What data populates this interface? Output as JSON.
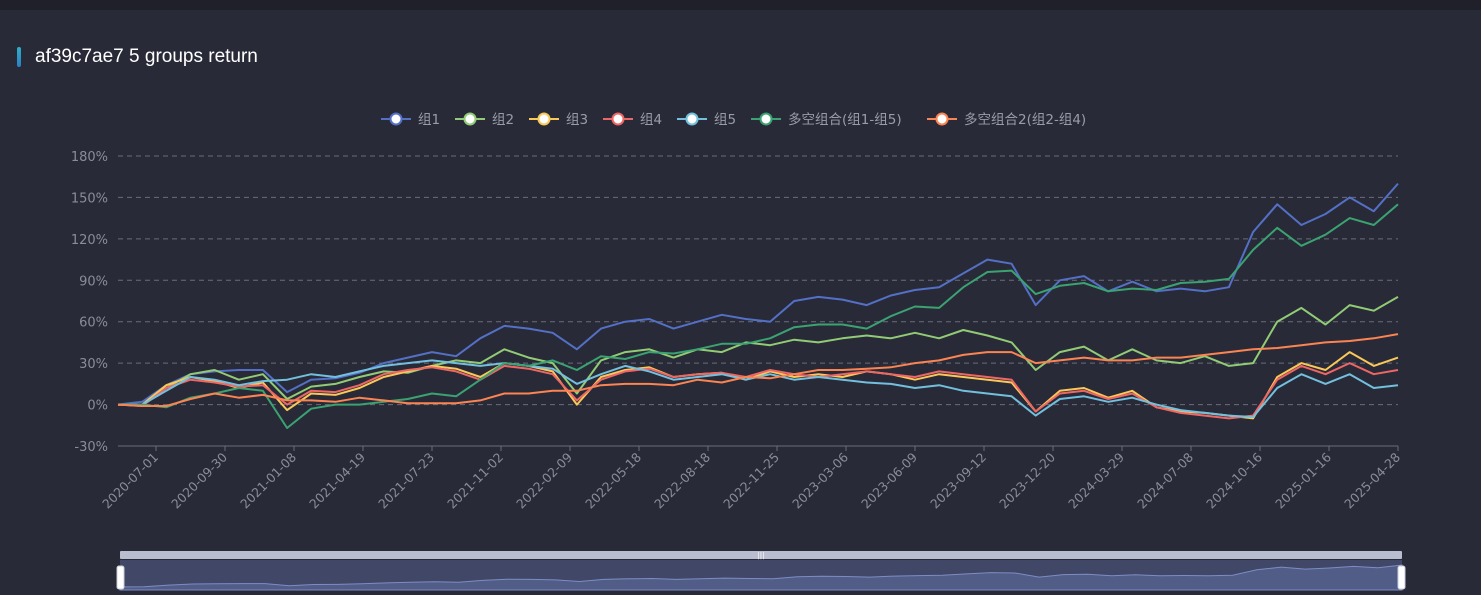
{
  "colors": {
    "background": "#282a37",
    "grid": "#6a6d7a",
    "axis_text": "#8a8d99",
    "legend_text": "#9a9da8"
  },
  "chart_data": {
    "type": "line",
    "title": "af39c7ae7 5 groups return",
    "ylim": [
      -30,
      180
    ],
    "y_ticks": [
      "180%",
      "150%",
      "120%",
      "90%",
      "60%",
      "30%",
      "0%",
      "-30%"
    ],
    "y_tick_values": [
      180,
      150,
      120,
      90,
      60,
      30,
      0,
      -30
    ],
    "x_tick_labels": [
      "2020-07-01",
      "2020-09-30",
      "2021-01-08",
      "2021-04-19",
      "2021-07-23",
      "2021-11-02",
      "2022-02-09",
      "2022-05-18",
      "2022-08-18",
      "2022-11-25",
      "2023-03-06",
      "2023-06-09",
      "2023-09-12",
      "2023-12-20",
      "2024-03-29",
      "2024-07-08",
      "2024-10-16",
      "2025-01-16",
      "2025-04-28"
    ],
    "grid": true,
    "legend_position": "top-center",
    "series": [
      {
        "name": "组1",
        "color": "#5470c6",
        "values": [
          0,
          2,
          14,
          22,
          24,
          25,
          25,
          9,
          18,
          19,
          23,
          30,
          34,
          38,
          35,
          48,
          57,
          55,
          52,
          40,
          55,
          60,
          62,
          55,
          60,
          65,
          62,
          60,
          75,
          78,
          76,
          72,
          79,
          83,
          85,
          95,
          105,
          102,
          72,
          90,
          93,
          82,
          89,
          82,
          84,
          82,
          85,
          125,
          145,
          130,
          138,
          150,
          140,
          160
        ]
      },
      {
        "name": "组2",
        "color": "#91cc75",
        "values": [
          0,
          0,
          12,
          22,
          25,
          18,
          22,
          4,
          13,
          15,
          20,
          24,
          23,
          28,
          32,
          30,
          40,
          34,
          30,
          8,
          32,
          38,
          40,
          34,
          40,
          38,
          45,
          43,
          47,
          45,
          48,
          50,
          48,
          52,
          48,
          54,
          50,
          45,
          25,
          38,
          42,
          32,
          40,
          32,
          30,
          35,
          28,
          30,
          60,
          70,
          58,
          72,
          68,
          78
        ]
      },
      {
        "name": "组3",
        "color": "#fac858",
        "values": [
          0,
          0,
          14,
          20,
          17,
          12,
          16,
          -4,
          8,
          7,
          12,
          20,
          24,
          28,
          26,
          20,
          30,
          28,
          24,
          0,
          20,
          25,
          27,
          20,
          22,
          23,
          18,
          24,
          20,
          22,
          20,
          24,
          22,
          18,
          22,
          20,
          18,
          16,
          -5,
          10,
          12,
          5,
          10,
          -2,
          -5,
          -6,
          -8,
          -10,
          20,
          30,
          25,
          38,
          28,
          34
        ]
      },
      {
        "name": "组4",
        "color": "#ee6666",
        "values": [
          0,
          -1,
          12,
          18,
          16,
          13,
          14,
          0,
          10,
          9,
          14,
          22,
          25,
          27,
          24,
          18,
          28,
          26,
          22,
          3,
          18,
          24,
          26,
          20,
          22,
          23,
          20,
          25,
          22,
          20,
          22,
          24,
          22,
          20,
          24,
          22,
          20,
          18,
          -5,
          8,
          10,
          4,
          8,
          -2,
          -6,
          -8,
          -10,
          -8,
          18,
          28,
          22,
          30,
          22,
          25
        ]
      },
      {
        "name": "组5",
        "color": "#73c0de",
        "values": [
          0,
          0,
          10,
          20,
          18,
          14,
          17,
          18,
          22,
          20,
          24,
          28,
          30,
          32,
          30,
          28,
          30,
          28,
          26,
          15,
          22,
          28,
          24,
          18,
          20,
          22,
          18,
          22,
          18,
          20,
          18,
          16,
          15,
          12,
          14,
          10,
          8,
          6,
          -8,
          4,
          6,
          2,
          5,
          0,
          -4,
          -6,
          -8,
          -9,
          12,
          22,
          15,
          22,
          12,
          14
        ]
      },
      {
        "name": "多空组合(组1-组5)",
        "color": "#3ba272",
        "values": [
          0,
          0,
          -2,
          5,
          8,
          12,
          10,
          -17,
          -3,
          0,
          0,
          2,
          4,
          8,
          6,
          18,
          30,
          28,
          32,
          25,
          35,
          33,
          38,
          37,
          40,
          44,
          44,
          48,
          56,
          58,
          58,
          55,
          64,
          71,
          70,
          85,
          96,
          97,
          80,
          86,
          88,
          82,
          84,
          83,
          88,
          89,
          91,
          112,
          128,
          115,
          123,
          135,
          130,
          145
        ]
      },
      {
        "name": "多空组合2(组2-组4)",
        "color": "#fc8452",
        "values": [
          0,
          -1,
          -1,
          4,
          8,
          5,
          7,
          3,
          3,
          2,
          5,
          3,
          1,
          1,
          1,
          3,
          8,
          8,
          10,
          10,
          14,
          15,
          15,
          14,
          18,
          16,
          20,
          19,
          22,
          25,
          25,
          26,
          27,
          30,
          32,
          36,
          38,
          38,
          30,
          32,
          34,
          32,
          32,
          34,
          34,
          36,
          38,
          40,
          41,
          43,
          45,
          46,
          48,
          51
        ]
      }
    ]
  },
  "ui": {
    "zoom_slider_label": "data zoom",
    "zoom_handle_glyph": "|||"
  }
}
